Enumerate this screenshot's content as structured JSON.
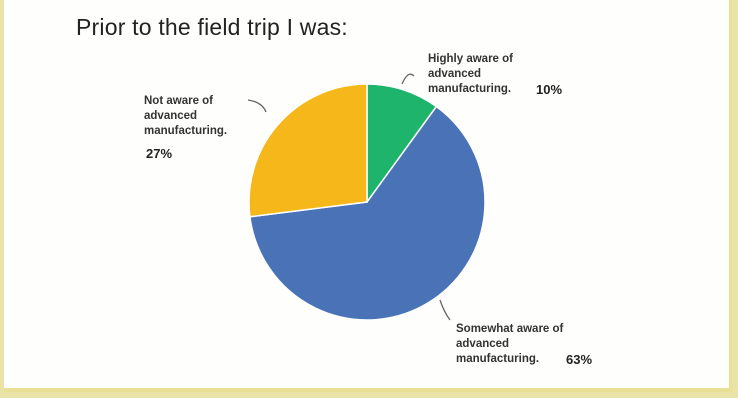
{
  "chart_data": {
    "type": "pie",
    "title": "Prior to the field trip I was:",
    "slices": [
      {
        "label": "Highly aware of\nadvanced\nmanufacturing.",
        "value": 10,
        "value_label": "10%",
        "color": "#1fb46b"
      },
      {
        "label": "Somewhat aware of\nadvanced\nmanufacturing.",
        "value": 63,
        "value_label": "63%",
        "color": "#4a73b7"
      },
      {
        "label": "Not aware of\nadvanced\nmanufacturing.",
        "value": 27,
        "value_label": "27%",
        "color": "#f6b71a"
      }
    ],
    "start_angle": "12 o'clock",
    "direction": "clockwise"
  }
}
